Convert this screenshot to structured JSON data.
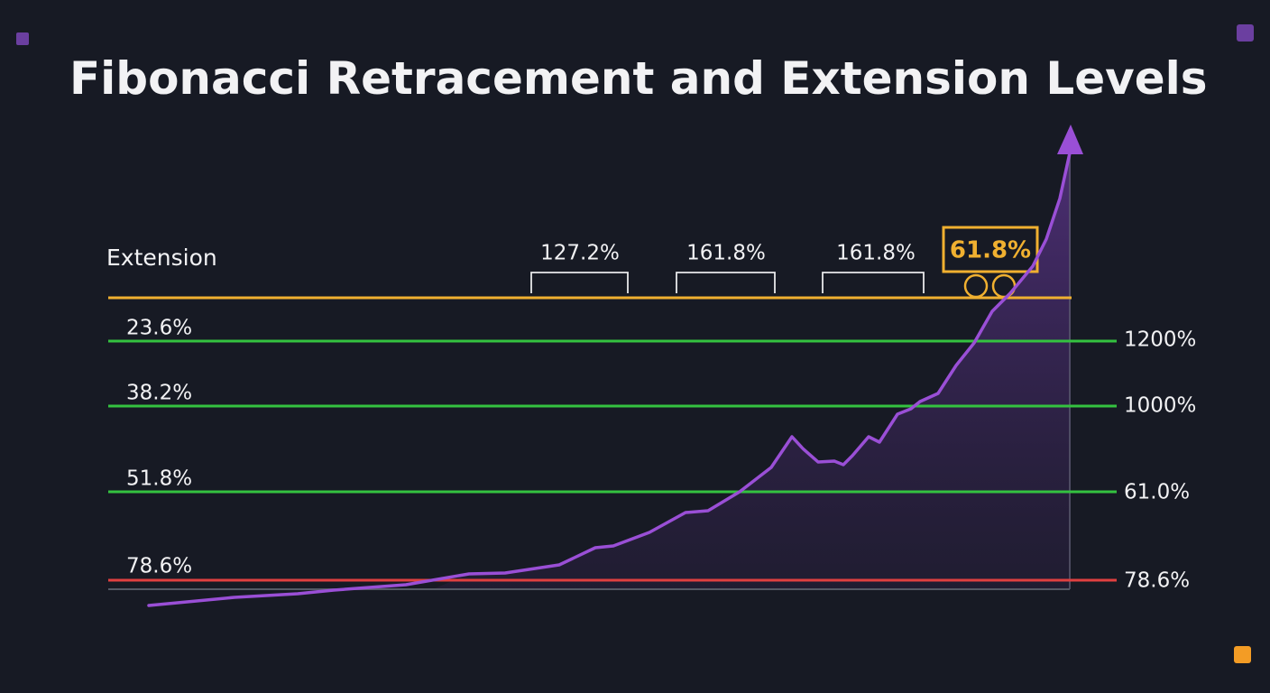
{
  "title": "Fibonacci Retracement and Extension Levels",
  "extension_label": "Extension",
  "brackets": [
    "127.2%",
    "161.8%",
    "161.8%"
  ],
  "highlight": "61.8%",
  "left_levels": [
    "23.6%",
    "38.2%",
    "51.8%",
    "78.6%"
  ],
  "right_levels": [
    "1200%",
    "1000%",
    "61.0%",
    "78.6%"
  ]
}
